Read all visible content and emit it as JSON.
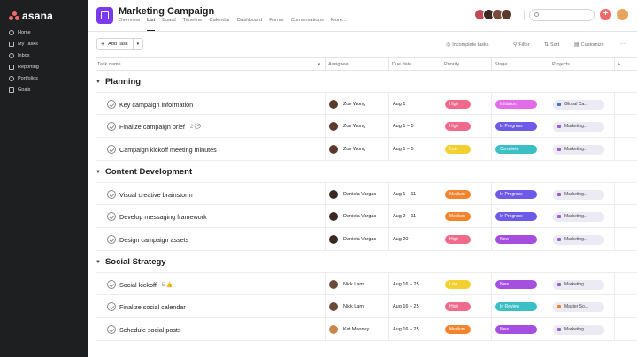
{
  "sidebar": {
    "logo": "asana",
    "logo_color": "#f06a6a",
    "items": [
      {
        "label": "Home",
        "icon": "home-icon"
      },
      {
        "label": "My Tasks",
        "icon": "check-circle-icon"
      },
      {
        "label": "Inbox",
        "icon": "bell-icon"
      },
      {
        "label": "Reporting",
        "icon": "chart-icon"
      },
      {
        "label": "Portfolios",
        "icon": "folder-icon"
      },
      {
        "label": "Goals",
        "icon": "target-icon"
      }
    ]
  },
  "header": {
    "project_title": "Marketing Campaign",
    "project_color": "#7b3aed",
    "tabs": [
      "Overview",
      "List",
      "Board",
      "Timeline",
      "Calendar",
      "Dashboard",
      "Forms",
      "Conversations",
      "More..."
    ],
    "active_tab": "List",
    "plus": "+"
  },
  "toolbar": {
    "add_task": "Add Task",
    "incomplete": "Incomplete tasks",
    "filter": "Filter",
    "sort": "Sort",
    "customize": "Customize",
    "more": "···"
  },
  "columns": [
    "Task name",
    "Assignee",
    "Due date",
    "Priority",
    "Stage",
    "Projects",
    "+"
  ],
  "sections": [
    {
      "title": "Planning",
      "tasks": [
        {
          "name": "Key campaign information",
          "meta": "",
          "assignee": "Zoe Wong",
          "avatar": "#5b3a2e",
          "due": "Aug 1",
          "priority": "High",
          "priority_color": "#f06a8c",
          "stage": "Initiation",
          "stage_color": "#e36ce8",
          "project": "Global Ca...",
          "project_color": "#4573d2"
        },
        {
          "name": "Finalize campaign brief",
          "meta": "2 💬",
          "assignee": "Zoe Wong",
          "avatar": "#5b3a2e",
          "due": "Aug 1 – 5",
          "priority": "High",
          "priority_color": "#f06a8c",
          "stage": "In Progress",
          "stage_color": "#6e5ae8",
          "project": "Marketing...",
          "project_color": "#a05bd1"
        },
        {
          "name": "Campaign kickoff meeting minutes",
          "meta": "",
          "assignee": "Zoe Wong",
          "avatar": "#5b3a2e",
          "due": "Aug 1 – 5",
          "priority": "Low",
          "priority_color": "#f2d02f",
          "stage": "Complete",
          "stage_color": "#3bbfc4",
          "project": "Marketing...",
          "project_color": "#a05bd1"
        }
      ]
    },
    {
      "title": "Content Development",
      "tasks": [
        {
          "name": "Visual creative brainstorm",
          "meta": "",
          "assignee": "Daniela Vargas",
          "avatar": "#3b2a22",
          "due": "Aug 1 – 11",
          "priority": "Medium",
          "priority_color": "#f2842e",
          "stage": "In Progress",
          "stage_color": "#6e5ae8",
          "project": "Marketing...",
          "project_color": "#a05bd1"
        },
        {
          "name": "Develop messaging framework",
          "meta": "",
          "assignee": "Daniela Vargas",
          "avatar": "#3b2a22",
          "due": "Aug 2 – 11",
          "priority": "Medium",
          "priority_color": "#f2842e",
          "stage": "In Progress",
          "stage_color": "#6e5ae8",
          "project": "Marketing...",
          "project_color": "#a05bd1"
        },
        {
          "name": "Design campaign assets",
          "meta": "",
          "assignee": "Daniela Vargas",
          "avatar": "#3b2a22",
          "due": "Aug 20",
          "priority": "High",
          "priority_color": "#f06a8c",
          "stage": "New",
          "stage_color": "#a44fe0",
          "project": "Marketing...",
          "project_color": "#a05bd1"
        }
      ]
    },
    {
      "title": "Social Strategy",
      "tasks": [
        {
          "name": "Social kickoff",
          "meta": "5 👍",
          "assignee": "Nick Lam",
          "avatar": "#6b4a3a",
          "due": "Aug 16 – 25",
          "priority": "Low",
          "priority_color": "#f2d02f",
          "stage": "New",
          "stage_color": "#a44fe0",
          "project": "Marketing...",
          "project_color": "#a05bd1"
        },
        {
          "name": "Finalize social calendar",
          "meta": "",
          "assignee": "Nick Lam",
          "avatar": "#6b4a3a",
          "due": "Aug 16 – 25",
          "priority": "High",
          "priority_color": "#f06a8c",
          "stage": "In Review",
          "stage_color": "#3bbfc4",
          "project": "Master So...",
          "project_color": "#f2842e"
        },
        {
          "name": "Schedule social posts",
          "meta": "",
          "assignee": "Kat Mooney",
          "avatar": "#c8874a",
          "due": "Aug 16 – 25",
          "priority": "Medium",
          "priority_color": "#f2842e",
          "stage": "New",
          "stage_color": "#a44fe0",
          "project": "Marketing...",
          "project_color": "#a05bd1"
        }
      ]
    }
  ]
}
